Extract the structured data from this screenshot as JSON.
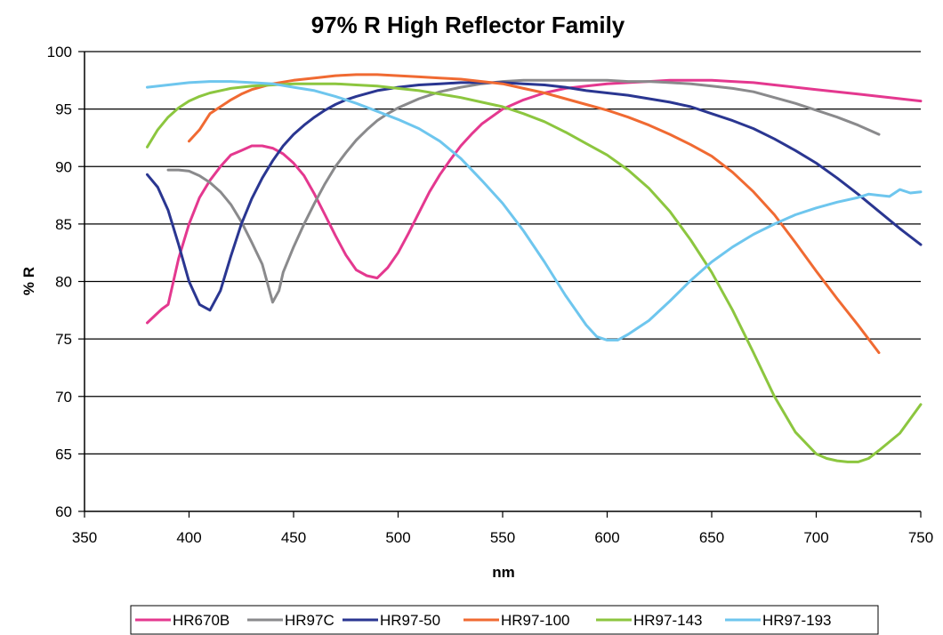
{
  "chart_data": {
    "type": "line",
    "title": "97% R High Reflector Family",
    "xlabel": "nm",
    "ylabel": "% R",
    "xlim": [
      350,
      750
    ],
    "ylim": [
      60,
      100
    ],
    "xticks": [
      "350",
      "400",
      "450",
      "500",
      "550",
      "600",
      "650",
      "700",
      "750"
    ],
    "yticks": [
      "60",
      "65",
      "70",
      "75",
      "80",
      "85",
      "90",
      "95",
      "100"
    ],
    "grid": "horizontal",
    "legend_position": "bottom",
    "series": [
      {
        "name": "HR670B",
        "color": "#e4388f",
        "points": [
          [
            380,
            76.4
          ],
          [
            387,
            77.6
          ],
          [
            390,
            78
          ],
          [
            395,
            82
          ],
          [
            400,
            85
          ],
          [
            405,
            87.3
          ],
          [
            410,
            88.8
          ],
          [
            415,
            90
          ],
          [
            420,
            91
          ],
          [
            425,
            91.4
          ],
          [
            430,
            91.8
          ],
          [
            435,
            91.8
          ],
          [
            440,
            91.6
          ],
          [
            445,
            91.1
          ],
          [
            450,
            90.3
          ],
          [
            455,
            89.2
          ],
          [
            460,
            87.6
          ],
          [
            465,
            85.8
          ],
          [
            470,
            84
          ],
          [
            475,
            82.3
          ],
          [
            480,
            81
          ],
          [
            485,
            80.5
          ],
          [
            490,
            80.3
          ],
          [
            495,
            81.2
          ],
          [
            500,
            82.5
          ],
          [
            505,
            84.2
          ],
          [
            510,
            86
          ],
          [
            515,
            87.8
          ],
          [
            520,
            89.3
          ],
          [
            525,
            90.6
          ],
          [
            530,
            91.8
          ],
          [
            535,
            92.8
          ],
          [
            540,
            93.7
          ],
          [
            550,
            95
          ],
          [
            560,
            95.8
          ],
          [
            570,
            96.4
          ],
          [
            580,
            96.8
          ],
          [
            590,
            97
          ],
          [
            600,
            97.2
          ],
          [
            610,
            97.3
          ],
          [
            620,
            97.4
          ],
          [
            630,
            97.5
          ],
          [
            640,
            97.5
          ],
          [
            650,
            97.5
          ],
          [
            660,
            97.4
          ],
          [
            670,
            97.3
          ],
          [
            680,
            97.1
          ],
          [
            690,
            96.9
          ],
          [
            700,
            96.7
          ],
          [
            710,
            96.5
          ],
          [
            720,
            96.3
          ],
          [
            730,
            96.1
          ],
          [
            740,
            95.9
          ],
          [
            750,
            95.7
          ]
        ]
      },
      {
        "name": "HR97C",
        "color": "#8a8a8c",
        "points": [
          [
            390,
            89.7
          ],
          [
            395,
            89.7
          ],
          [
            400,
            89.6
          ],
          [
            405,
            89.2
          ],
          [
            410,
            88.6
          ],
          [
            415,
            87.8
          ],
          [
            420,
            86.7
          ],
          [
            425,
            85.2
          ],
          [
            430,
            83.4
          ],
          [
            435,
            81.5
          ],
          [
            440,
            78.2
          ],
          [
            443,
            79.2
          ],
          [
            445,
            80.8
          ],
          [
            450,
            83
          ],
          [
            455,
            85
          ],
          [
            460,
            86.8
          ],
          [
            465,
            88.5
          ],
          [
            470,
            90
          ],
          [
            475,
            91.2
          ],
          [
            480,
            92.3
          ],
          [
            485,
            93.2
          ],
          [
            490,
            94
          ],
          [
            495,
            94.6
          ],
          [
            500,
            95.1
          ],
          [
            510,
            95.9
          ],
          [
            520,
            96.5
          ],
          [
            530,
            96.9
          ],
          [
            540,
            97.2
          ],
          [
            550,
            97.4
          ],
          [
            560,
            97.5
          ],
          [
            570,
            97.5
          ],
          [
            580,
            97.5
          ],
          [
            590,
            97.5
          ],
          [
            600,
            97.5
          ],
          [
            610,
            97.4
          ],
          [
            620,
            97.4
          ],
          [
            630,
            97.3
          ],
          [
            640,
            97.2
          ],
          [
            650,
            97
          ],
          [
            660,
            96.8
          ],
          [
            670,
            96.5
          ],
          [
            680,
            96
          ],
          [
            690,
            95.5
          ],
          [
            700,
            94.9
          ],
          [
            710,
            94.3
          ],
          [
            720,
            93.6
          ],
          [
            730,
            92.8
          ]
        ]
      },
      {
        "name": "HR97-50",
        "color": "#2a3691",
        "points": [
          [
            380,
            89.3
          ],
          [
            385,
            88.2
          ],
          [
            390,
            86.2
          ],
          [
            395,
            83.2
          ],
          [
            400,
            80
          ],
          [
            405,
            78
          ],
          [
            410,
            77.5
          ],
          [
            415,
            79.2
          ],
          [
            420,
            82.2
          ],
          [
            425,
            85
          ],
          [
            430,
            87.2
          ],
          [
            435,
            89
          ],
          [
            440,
            90.5
          ],
          [
            445,
            91.8
          ],
          [
            450,
            92.8
          ],
          [
            455,
            93.6
          ],
          [
            460,
            94.3
          ],
          [
            465,
            94.9
          ],
          [
            470,
            95.4
          ],
          [
            475,
            95.8
          ],
          [
            480,
            96.1
          ],
          [
            490,
            96.6
          ],
          [
            500,
            96.9
          ],
          [
            510,
            97.1
          ],
          [
            520,
            97.2
          ],
          [
            530,
            97.3
          ],
          [
            540,
            97.3
          ],
          [
            550,
            97.3
          ],
          [
            560,
            97.2
          ],
          [
            570,
            97.1
          ],
          [
            580,
            96.9
          ],
          [
            590,
            96.6
          ],
          [
            600,
            96.4
          ],
          [
            610,
            96.2
          ],
          [
            620,
            95.9
          ],
          [
            630,
            95.6
          ],
          [
            640,
            95.2
          ],
          [
            650,
            94.6
          ],
          [
            660,
            94
          ],
          [
            670,
            93.3
          ],
          [
            680,
            92.4
          ],
          [
            690,
            91.4
          ],
          [
            700,
            90.3
          ],
          [
            710,
            89
          ],
          [
            720,
            87.6
          ],
          [
            730,
            86.1
          ],
          [
            740,
            84.6
          ],
          [
            750,
            83.2
          ]
        ]
      },
      {
        "name": "HR97-100",
        "color": "#f06a32",
        "points": [
          [
            400,
            92.2
          ],
          [
            405,
            93.2
          ],
          [
            410,
            94.6
          ],
          [
            415,
            95.2
          ],
          [
            420,
            95.8
          ],
          [
            425,
            96.3
          ],
          [
            430,
            96.7
          ],
          [
            440,
            97.2
          ],
          [
            450,
            97.5
          ],
          [
            460,
            97.7
          ],
          [
            470,
            97.9
          ],
          [
            480,
            98
          ],
          [
            490,
            98
          ],
          [
            500,
            97.9
          ],
          [
            510,
            97.8
          ],
          [
            520,
            97.7
          ],
          [
            530,
            97.6
          ],
          [
            540,
            97.4
          ],
          [
            550,
            97.2
          ],
          [
            560,
            96.8
          ],
          [
            570,
            96.4
          ],
          [
            580,
            95.9
          ],
          [
            590,
            95.4
          ],
          [
            600,
            94.9
          ],
          [
            610,
            94.3
          ],
          [
            620,
            93.6
          ],
          [
            630,
            92.8
          ],
          [
            640,
            91.9
          ],
          [
            650,
            90.9
          ],
          [
            660,
            89.5
          ],
          [
            670,
            87.8
          ],
          [
            680,
            85.8
          ],
          [
            690,
            83.4
          ],
          [
            700,
            80.9
          ],
          [
            710,
            78.5
          ],
          [
            720,
            76.2
          ],
          [
            730,
            73.8
          ]
        ]
      },
      {
        "name": "HR97-143",
        "color": "#8cc63f",
        "points": [
          [
            380,
            91.7
          ],
          [
            385,
            93.2
          ],
          [
            390,
            94.3
          ],
          [
            395,
            95.1
          ],
          [
            400,
            95.7
          ],
          [
            405,
            96.1
          ],
          [
            410,
            96.4
          ],
          [
            420,
            96.8
          ],
          [
            430,
            97
          ],
          [
            440,
            97.1
          ],
          [
            450,
            97.2
          ],
          [
            460,
            97.2
          ],
          [
            470,
            97.2
          ],
          [
            480,
            97.1
          ],
          [
            490,
            97
          ],
          [
            500,
            96.8
          ],
          [
            510,
            96.6
          ],
          [
            520,
            96.3
          ],
          [
            530,
            96
          ],
          [
            540,
            95.6
          ],
          [
            550,
            95.2
          ],
          [
            560,
            94.6
          ],
          [
            570,
            93.9
          ],
          [
            580,
            93
          ],
          [
            590,
            92
          ],
          [
            600,
            91
          ],
          [
            610,
            89.7
          ],
          [
            620,
            88.1
          ],
          [
            630,
            86.1
          ],
          [
            640,
            83.6
          ],
          [
            650,
            80.8
          ],
          [
            660,
            77.5
          ],
          [
            670,
            73.8
          ],
          [
            680,
            70
          ],
          [
            690,
            66.9
          ],
          [
            700,
            65
          ],
          [
            705,
            64.6
          ],
          [
            710,
            64.4
          ],
          [
            715,
            64.3
          ],
          [
            720,
            64.3
          ],
          [
            725,
            64.6
          ],
          [
            730,
            65.3
          ],
          [
            740,
            66.8
          ],
          [
            750,
            69.3
          ]
        ]
      },
      {
        "name": "HR97-193",
        "color": "#6ec6ee",
        "points": [
          [
            380,
            96.9
          ],
          [
            390,
            97.1
          ],
          [
            400,
            97.3
          ],
          [
            410,
            97.4
          ],
          [
            420,
            97.4
          ],
          [
            430,
            97.3
          ],
          [
            440,
            97.2
          ],
          [
            450,
            96.9
          ],
          [
            460,
            96.6
          ],
          [
            470,
            96.1
          ],
          [
            480,
            95.5
          ],
          [
            490,
            94.8
          ],
          [
            500,
            94.1
          ],
          [
            510,
            93.3
          ],
          [
            520,
            92.2
          ],
          [
            530,
            90.7
          ],
          [
            540,
            88.8
          ],
          [
            550,
            86.8
          ],
          [
            560,
            84.4
          ],
          [
            570,
            81.7
          ],
          [
            580,
            78.8
          ],
          [
            590,
            76.2
          ],
          [
            595,
            75.2
          ],
          [
            600,
            74.9
          ],
          [
            605,
            74.9
          ],
          [
            610,
            75.4
          ],
          [
            620,
            76.6
          ],
          [
            630,
            78.3
          ],
          [
            640,
            80.1
          ],
          [
            650,
            81.7
          ],
          [
            660,
            83
          ],
          [
            670,
            84.1
          ],
          [
            680,
            85
          ],
          [
            690,
            85.8
          ],
          [
            700,
            86.4
          ],
          [
            710,
            86.9
          ],
          [
            720,
            87.3
          ],
          [
            725,
            87.6
          ],
          [
            730,
            87.5
          ],
          [
            735,
            87.4
          ],
          [
            740,
            88
          ],
          [
            745,
            87.7
          ],
          [
            750,
            87.8
          ]
        ]
      }
    ]
  }
}
